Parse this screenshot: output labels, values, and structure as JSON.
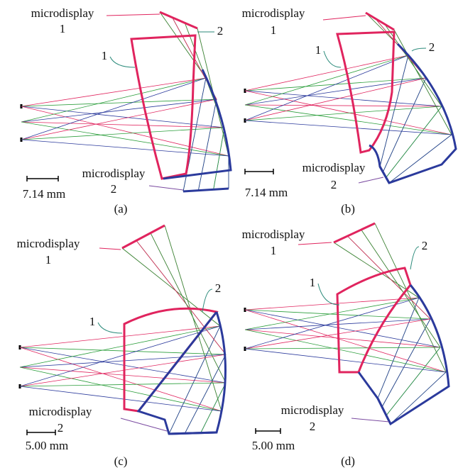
{
  "panels": [
    {
      "caption": "(a)",
      "scale_label": "7.14 mm",
      "microdisplay_1": {
        "name": "microdisplay",
        "number": "1"
      },
      "microdisplay_2": {
        "name": "microdisplay",
        "number": "2"
      },
      "surface_1": "1",
      "surface_2": "2"
    },
    {
      "caption": "(b)",
      "scale_label": "7.14 mm",
      "microdisplay_1": {
        "name": "microdisplay",
        "number": "1"
      },
      "microdisplay_2": {
        "name": "microdisplay",
        "number": "2"
      },
      "surface_1": "1",
      "surface_2": "2"
    },
    {
      "caption": "(c)",
      "scale_label": "5.00 mm",
      "microdisplay_1": {
        "name": "microdisplay",
        "number": "1"
      },
      "microdisplay_2": {
        "name": "microdisplay",
        "number": "2"
      },
      "surface_1": "1",
      "surface_2": "2"
    },
    {
      "caption": "(d)",
      "scale_label": "5.00 mm",
      "microdisplay_1": {
        "name": "microdisplay",
        "number": "1"
      },
      "microdisplay_2": {
        "name": "microdisplay",
        "number": "2"
      },
      "surface_1": "1",
      "surface_2": "2"
    }
  ]
}
